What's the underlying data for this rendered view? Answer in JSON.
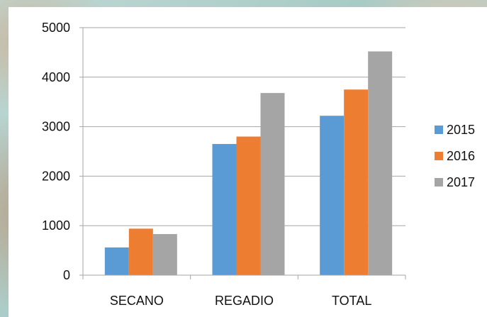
{
  "chart_data": {
    "type": "bar",
    "title": "",
    "xlabel": "",
    "ylabel": "",
    "categories": [
      "SECANO",
      "REGADIO",
      "TOTAL"
    ],
    "series": [
      {
        "name": "2015",
        "color": "#5b9bd5",
        "values": [
          560,
          2650,
          3220
        ]
      },
      {
        "name": "2016",
        "color": "#ed7d31",
        "values": [
          940,
          2800,
          3750
        ]
      },
      {
        "name": "2017",
        "color": "#a5a5a5",
        "values": [
          830,
          3680,
          4520
        ]
      }
    ],
    "ylim": [
      0,
      5000
    ],
    "yticks": [
      "0",
      "1000",
      "2000",
      "3000",
      "4000",
      "5000"
    ],
    "ytick_values": [
      0,
      1000,
      2000,
      3000,
      4000,
      5000
    ],
    "grid": true,
    "legend_position": "right"
  }
}
